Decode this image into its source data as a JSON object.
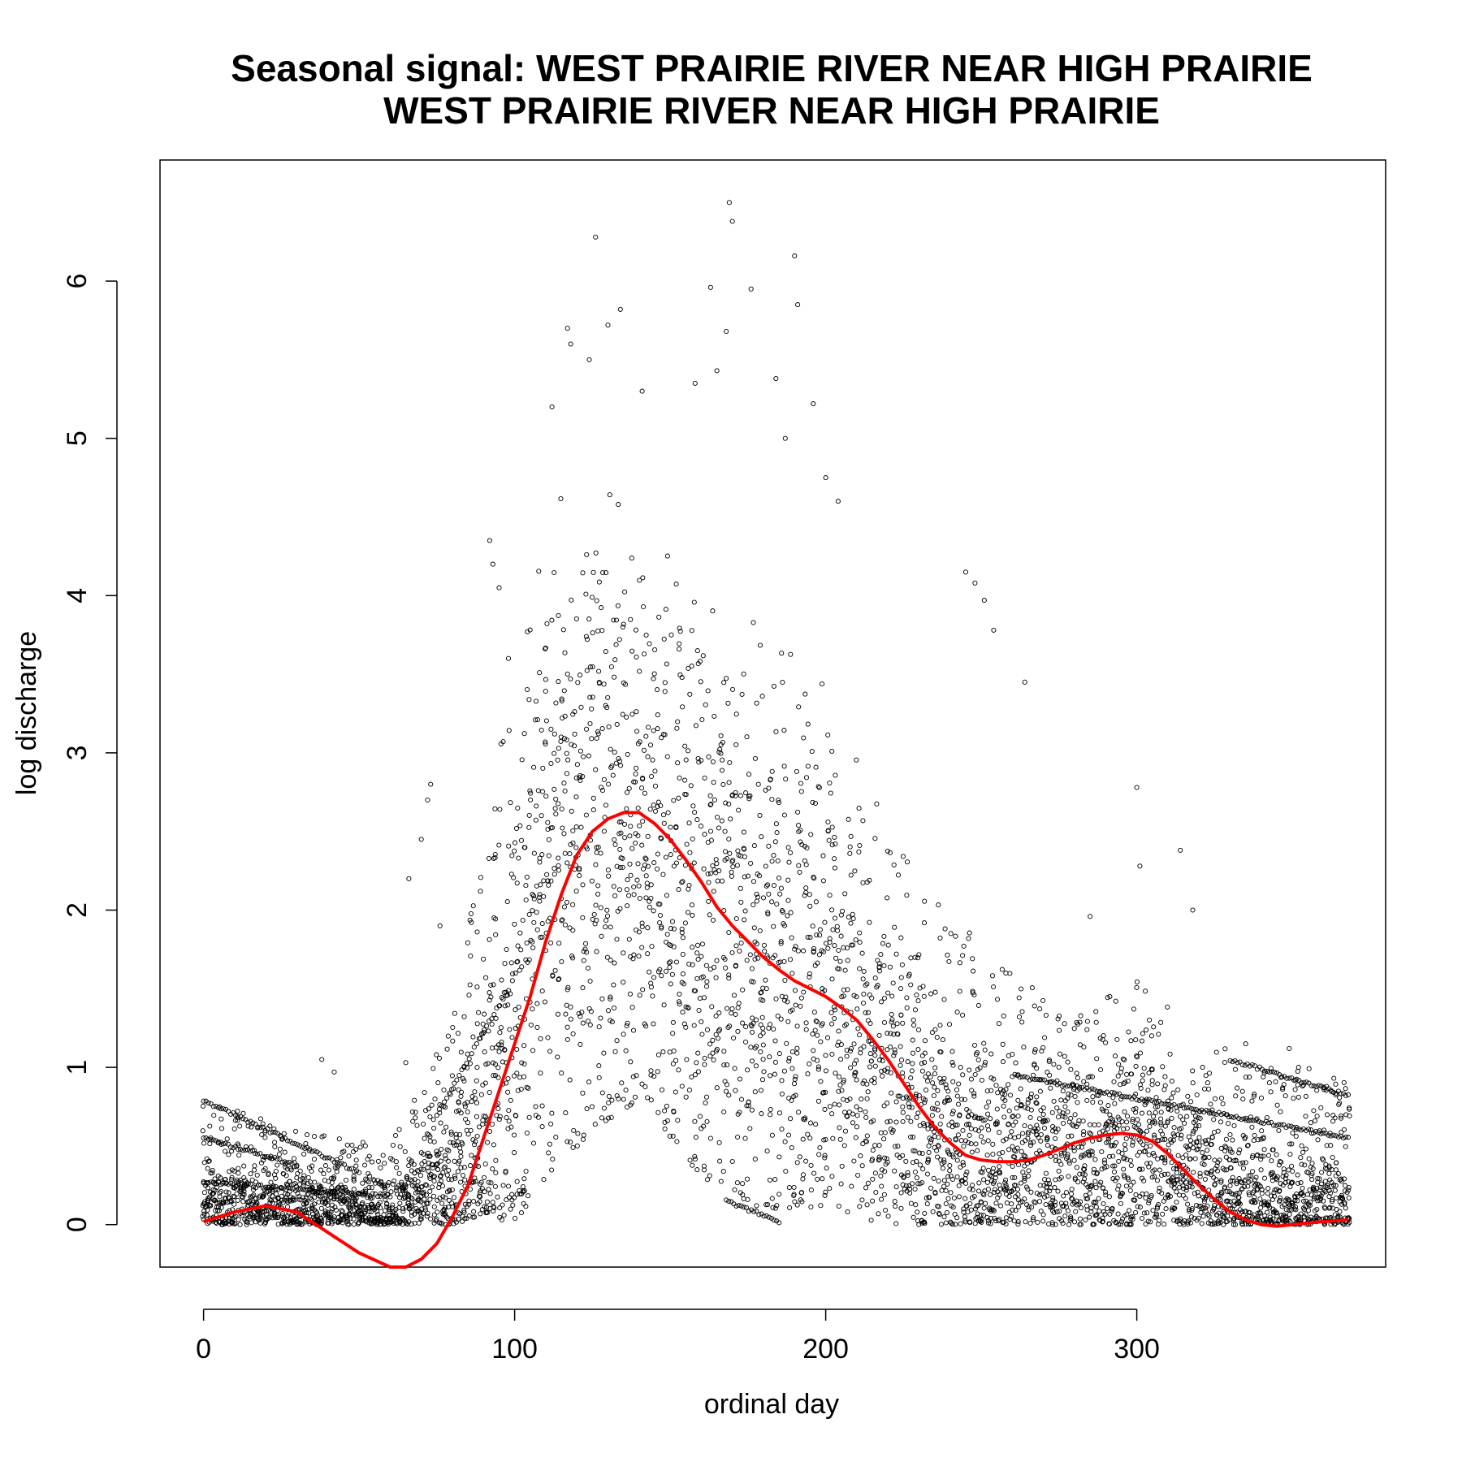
{
  "chart_data": {
    "type": "scatter",
    "title": "Seasonal signal: WEST PRAIRIE RIVER NEAR HIGH PRAIRIE",
    "subtitle": "WEST PRAIRIE RIVER NEAR HIGH PRAIRIE",
    "xlabel": "ordinal day",
    "ylabel": "log discharge",
    "xlim": [
      -14,
      380
    ],
    "ylim": [
      -0.27,
      6.77
    ],
    "x_ticks": [
      0,
      100,
      200,
      300
    ],
    "y_ticks": [
      0,
      1,
      2,
      3,
      4,
      5,
      6
    ],
    "grid": false,
    "legend": "none",
    "colors": {
      "points": "#000000",
      "smooth": "#ff0000"
    },
    "series": [
      {
        "type": "scatter",
        "marker": "open-circle",
        "description_points": "daily observations (approximate density envelope)",
        "envelope": [
          {
            "day": 0,
            "low": 0.0,
            "high": 0.8,
            "center": 0.15
          },
          {
            "day": 30,
            "low": 0.0,
            "high": 0.6,
            "center": 0.12
          },
          {
            "day": 60,
            "low": 0.0,
            "high": 0.5,
            "center": 0.08
          },
          {
            "day": 80,
            "low": 0.0,
            "high": 1.3,
            "center": 0.3
          },
          {
            "day": 95,
            "low": 0.1,
            "high": 3.0,
            "center": 1.0
          },
          {
            "day": 110,
            "low": 0.3,
            "high": 4.5,
            "center": 2.3
          },
          {
            "day": 125,
            "low": 0.6,
            "high": 5.0,
            "center": 2.8
          },
          {
            "day": 140,
            "low": 0.8,
            "high": 4.5,
            "center": 2.6
          },
          {
            "day": 160,
            "low": 0.3,
            "high": 4.0,
            "center": 2.0
          },
          {
            "day": 180,
            "low": 0.1,
            "high": 3.8,
            "center": 1.7
          },
          {
            "day": 200,
            "low": 0.1,
            "high": 3.5,
            "center": 1.5
          },
          {
            "day": 220,
            "low": 0.0,
            "high": 2.5,
            "center": 1.0
          },
          {
            "day": 240,
            "low": 0.0,
            "high": 2.0,
            "center": 0.6
          },
          {
            "day": 260,
            "low": 0.0,
            "high": 1.6,
            "center": 0.45
          },
          {
            "day": 280,
            "low": 0.0,
            "high": 1.3,
            "center": 0.5
          },
          {
            "day": 300,
            "low": 0.0,
            "high": 1.6,
            "center": 0.55
          },
          {
            "day": 320,
            "low": 0.0,
            "high": 1.2,
            "center": 0.35
          },
          {
            "day": 340,
            "low": 0.0,
            "high": 1.0,
            "center": 0.15
          },
          {
            "day": 365,
            "low": 0.0,
            "high": 1.0,
            "center": 0.1
          }
        ],
        "outliers": [
          [
            38,
            1.05
          ],
          [
            42,
            0.97
          ],
          [
            65,
            1.03
          ],
          [
            66,
            2.2
          ],
          [
            70,
            2.45
          ],
          [
            72,
            2.7
          ],
          [
            73,
            2.8
          ],
          [
            76,
            1.9
          ],
          [
            92,
            4.35
          ],
          [
            93,
            4.2
          ],
          [
            95,
            4.05
          ],
          [
            98,
            3.6
          ],
          [
            112,
            5.2
          ],
          [
            117,
            5.7
          ],
          [
            118,
            5.6
          ],
          [
            126,
            6.28
          ],
          [
            124,
            5.5
          ],
          [
            130,
            5.72
          ],
          [
            134,
            5.82
          ],
          [
            141,
            5.3
          ],
          [
            158,
            5.35
          ],
          [
            163,
            5.96
          ],
          [
            165,
            5.43
          ],
          [
            168,
            5.68
          ],
          [
            169,
            6.5
          ],
          [
            170,
            6.38
          ],
          [
            176,
            5.95
          ],
          [
            184,
            5.38
          ],
          [
            187,
            5.0
          ],
          [
            190,
            6.16
          ],
          [
            191,
            5.85
          ],
          [
            196,
            5.22
          ],
          [
            200,
            4.75
          ],
          [
            204,
            4.6
          ],
          [
            245,
            4.15
          ],
          [
            248,
            4.08
          ],
          [
            251,
            3.97
          ],
          [
            254,
            3.78
          ],
          [
            264,
            3.45
          ],
          [
            285,
            1.96
          ],
          [
            300,
            2.78
          ],
          [
            301,
            2.28
          ],
          [
            314,
            2.38
          ],
          [
            318,
            2.0
          ],
          [
            335,
            1.15
          ],
          [
            349,
            1.12
          ],
          [
            352,
            1.0
          ]
        ],
        "trails": [
          {
            "start": [
              0,
              0.79
            ],
            "end": [
              50,
              0.33
            ]
          },
          {
            "start": [
              0,
              0.55
            ],
            "end": [
              30,
              0.38
            ]
          },
          {
            "start": [
              75,
              0.7
            ],
            "end": [
              95,
              1.4
            ]
          },
          {
            "start": [
              168,
              0.15
            ],
            "end": [
              185,
              0.02
            ]
          },
          {
            "start": [
              260,
              0.95
            ],
            "end": [
              368,
              0.55
            ]
          },
          {
            "start": [
              330,
              1.05
            ],
            "end": [
              368,
              0.82
            ]
          },
          {
            "start": [
              0,
              0.27
            ],
            "end": [
              60,
              0.18
            ]
          }
        ]
      },
      {
        "type": "line",
        "name": "",
        "color": "#ff0000",
        "x": [
          0,
          10,
          20,
          30,
          40,
          50,
          60,
          65,
          70,
          75,
          80,
          85,
          90,
          95,
          100,
          105,
          110,
          115,
          120,
          125,
          130,
          135,
          140,
          145,
          150,
          155,
          160,
          165,
          170,
          175,
          180,
          185,
          190,
          195,
          200,
          205,
          210,
          215,
          220,
          225,
          230,
          235,
          240,
          245,
          250,
          255,
          260,
          265,
          270,
          275,
          280,
          285,
          290,
          295,
          300,
          305,
          310,
          315,
          320,
          325,
          330,
          335,
          340,
          345,
          350,
          355,
          360,
          368
        ],
        "y": [
          0.02,
          0.08,
          0.12,
          0.08,
          -0.05,
          -0.18,
          -0.27,
          -0.27,
          -0.22,
          -0.12,
          0.05,
          0.25,
          0.55,
          0.85,
          1.15,
          1.45,
          1.8,
          2.1,
          2.35,
          2.5,
          2.58,
          2.62,
          2.62,
          2.55,
          2.45,
          2.32,
          2.18,
          2.02,
          1.9,
          1.8,
          1.7,
          1.62,
          1.55,
          1.5,
          1.45,
          1.38,
          1.3,
          1.18,
          1.05,
          0.9,
          0.75,
          0.62,
          0.52,
          0.44,
          0.41,
          0.4,
          0.4,
          0.41,
          0.44,
          0.48,
          0.52,
          0.55,
          0.57,
          0.58,
          0.57,
          0.53,
          0.45,
          0.35,
          0.25,
          0.16,
          0.08,
          0.03,
          0.0,
          -0.01,
          0.0,
          0.01,
          0.02,
          0.03
        ]
      }
    ]
  }
}
